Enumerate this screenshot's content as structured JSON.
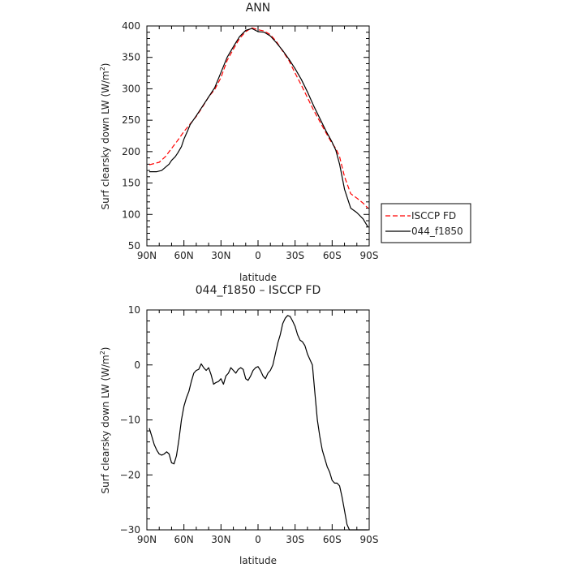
{
  "chart_data": [
    {
      "type": "line",
      "title": "ANN",
      "xlabel": "latitude",
      "ylabel": "Surf clearsky down LW (W/m",
      "ylabel_superscript": "2",
      "ylabel_suffix": ")",
      "xlim": [
        -90,
        90
      ],
      "ylim": [
        50,
        400
      ],
      "x_ticks": [
        -90,
        -60,
        -30,
        0,
        30,
        60,
        90
      ],
      "x_tick_labels": [
        "90N",
        "60N",
        "30N",
        "0",
        "30S",
        "60S",
        "90S"
      ],
      "y_ticks": [
        50,
        100,
        150,
        200,
        250,
        300,
        350,
        400
      ],
      "y_tick_labels": [
        "50",
        "100",
        "150",
        "200",
        "250",
        "300",
        "350",
        "400"
      ],
      "legend_position": "right-middle",
      "series": [
        {
          "name": "ISCCP FD",
          "color": "#ff0000",
          "dash": "dashed",
          "x": [
            -88,
            -80,
            -75,
            -70,
            -65,
            -60,
            -55,
            -50,
            -45,
            -40,
            -35,
            -30,
            -25,
            -20,
            -15,
            -10,
            -5,
            0,
            5,
            10,
            15,
            20,
            25,
            30,
            35,
            40,
            45,
            50,
            55,
            60,
            63,
            66,
            70,
            75,
            80,
            85,
            89
          ],
          "values": [
            179,
            183,
            192,
            205,
            218,
            232,
            244,
            256,
            271,
            287,
            299,
            318,
            345,
            363,
            380,
            391,
            397,
            394,
            392,
            386,
            375,
            360,
            345,
            325,
            306,
            286,
            266,
            248,
            230,
            213,
            205,
            192,
            160,
            133,
            126,
            118,
            110
          ]
        },
        {
          "name": "044_f1850",
          "color": "#000000",
          "dash": "solid",
          "x": [
            -88,
            -82,
            -78,
            -75,
            -72,
            -70,
            -67,
            -65,
            -62,
            -60,
            -57,
            -55,
            -50,
            -45,
            -40,
            -35,
            -30,
            -25,
            -20,
            -15,
            -10,
            -5,
            0,
            5,
            10,
            15,
            20,
            25,
            30,
            35,
            40,
            45,
            50,
            55,
            60,
            63,
            66,
            70,
            75,
            80,
            85,
            89
          ],
          "values": [
            168,
            168,
            170,
            175,
            180,
            186,
            192,
            198,
            208,
            220,
            233,
            243,
            257,
            272,
            287,
            302,
            326,
            350,
            367,
            383,
            393,
            396,
            391,
            390,
            384,
            373,
            361,
            347,
            332,
            315,
            295,
            273,
            253,
            233,
            215,
            202,
            180,
            140,
            110,
            103,
            93,
            80
          ]
        }
      ]
    },
    {
      "type": "line",
      "title": "044_f1850 – ISCCP FD",
      "xlabel": "latitude",
      "ylabel": "Surf clearsky down LW (W/m",
      "ylabel_superscript": "2",
      "ylabel_suffix": ")",
      "xlim": [
        -90,
        90
      ],
      "ylim": [
        -30,
        10
      ],
      "x_ticks": [
        -90,
        -60,
        -30,
        0,
        30,
        60,
        90
      ],
      "x_tick_labels": [
        "90N",
        "60N",
        "30N",
        "0",
        "30S",
        "60S",
        "90S"
      ],
      "y_ticks": [
        -30,
        -20,
        -10,
        0,
        10
      ],
      "y_tick_labels": [
        "−30",
        "−20",
        "−10",
        "0",
        "10"
      ],
      "series": [
        {
          "color": "#000000",
          "dash": "solid",
          "x": [
            -88,
            -86,
            -84,
            -82,
            -80,
            -78,
            -76,
            -74,
            -72,
            -70,
            -68,
            -66,
            -64,
            -62,
            -60,
            -58,
            -56,
            -54,
            -52,
            -50,
            -48,
            -46,
            -44,
            -42,
            -40,
            -38,
            -36,
            -34,
            -32,
            -30,
            -28,
            -26,
            -24,
            -22,
            -20,
            -18,
            -16,
            -14,
            -12,
            -10,
            -8,
            -6,
            -4,
            -2,
            0,
            2,
            4,
            6,
            8,
            10,
            12,
            14,
            16,
            18,
            20,
            22,
            24,
            26,
            28,
            30,
            32,
            34,
            36,
            38,
            40,
            42,
            44,
            46,
            48,
            50,
            52,
            54,
            56,
            58,
            60,
            62,
            64,
            66,
            68,
            70,
            72,
            74,
            76,
            78,
            80,
            82,
            84,
            86,
            88,
            89
          ],
          "values": [
            -11.5,
            -13.0,
            -14.5,
            -15.5,
            -16.2,
            -16.4,
            -16.2,
            -15.8,
            -16.2,
            -17.8,
            -18.0,
            -16.5,
            -13.5,
            -10.0,
            -7.5,
            -6.0,
            -4.8,
            -3.0,
            -1.5,
            -1.0,
            -0.8,
            0.2,
            -0.5,
            -1.0,
            -0.5,
            -1.8,
            -3.5,
            -3.2,
            -3.0,
            -2.5,
            -3.5,
            -2.0,
            -1.5,
            -0.5,
            -1.0,
            -1.5,
            -0.8,
            -0.5,
            -0.8,
            -2.5,
            -2.8,
            -2.0,
            -1.0,
            -0.5,
            -0.3,
            -1.0,
            -2.0,
            -2.5,
            -1.5,
            -1.0,
            0.0,
            2.0,
            4.0,
            5.5,
            7.5,
            8.5,
            9.0,
            8.8,
            8.0,
            7.0,
            5.5,
            4.5,
            4.2,
            3.5,
            2.0,
            1.0,
            0.0,
            -5.0,
            -10.0,
            -13.0,
            -15.5,
            -17.0,
            -18.5,
            -19.5,
            -21.0,
            -21.5,
            -21.5,
            -22.0,
            -24.0,
            -26.5,
            -29.0,
            -30.0,
            -30.0,
            -30.0,
            -30.0,
            -30.0,
            -30.0,
            -30.0,
            -30.0,
            -30.0
          ]
        }
      ]
    }
  ]
}
